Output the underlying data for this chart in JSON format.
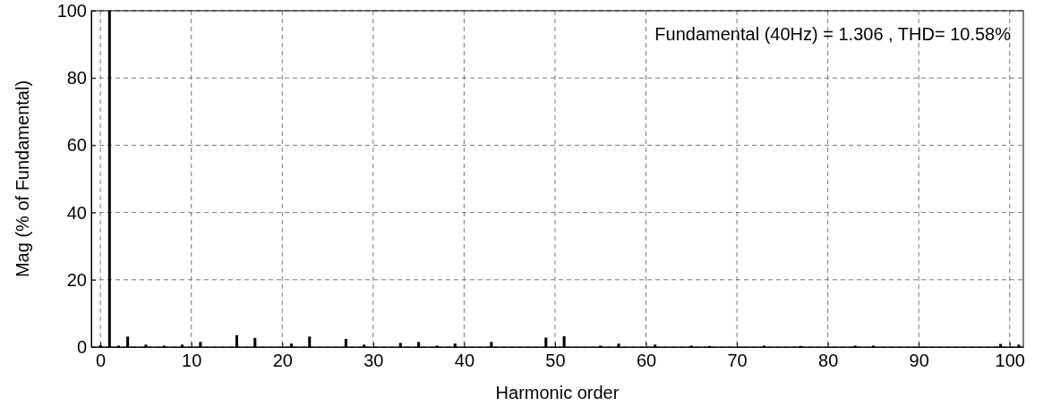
{
  "chart_data": {
    "type": "bar",
    "xlabel": "Harmonic order",
    "ylabel": "Mag (% of Fundamental)",
    "x": [
      0,
      1,
      2,
      3,
      5,
      7,
      9,
      11,
      15,
      17,
      21,
      23,
      27,
      29,
      33,
      35,
      37,
      39,
      43,
      49,
      51,
      55,
      57,
      61,
      65,
      67,
      73,
      77,
      83,
      85,
      99,
      101
    ],
    "values": [
      0.5,
      100,
      0.4,
      3.1,
      0.7,
      0.4,
      0.7,
      1.5,
      3.5,
      2.7,
      1,
      3.1,
      2.4,
      0.7,
      1.2,
      1.5,
      0.4,
      1,
      1.5,
      2.8,
      3.2,
      0.4,
      1,
      0.7,
      0.4,
      0.3,
      0.4,
      0.3,
      0.4,
      0.4,
      0.9,
      0.7
    ],
    "color": "#000000",
    "xlim": [
      -1,
      101.5
    ],
    "xticks": [
      0,
      10,
      20,
      30,
      40,
      50,
      60,
      70,
      80,
      90,
      100
    ],
    "ylim": [
      0,
      100
    ],
    "yticks": [
      0,
      20,
      40,
      60,
      80,
      100
    ],
    "grid": true,
    "annotations": [
      "Fundamental (40Hz) = 1.306 , THD= 10.58%"
    ]
  }
}
